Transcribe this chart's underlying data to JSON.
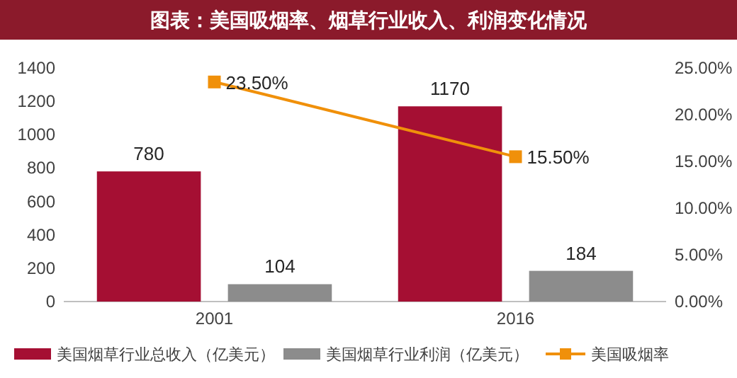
{
  "chart_data": {
    "type": "bar",
    "title": "图表：美国吸烟率、烟草行业收入、利润变化情况",
    "categories": [
      "2001",
      "2016"
    ],
    "series": [
      {
        "name": "美国烟草行业总收入（亿美元）",
        "color": "#a50f33",
        "values": [
          780,
          1170
        ],
        "value_labels": [
          "780",
          "1170"
        ]
      },
      {
        "name": "美国烟草行业利润（亿美元）",
        "color": "#8c8c8c",
        "values": [
          104,
          184
        ],
        "value_labels": [
          "104",
          "184"
        ]
      },
      {
        "name": "美国吸烟率",
        "type": "line",
        "axis": "y2",
        "color": "#f0900a",
        "values": [
          23.5,
          15.5
        ],
        "value_labels": [
          "23.50%",
          "15.50%"
        ]
      }
    ],
    "ylim": [
      0,
      1400
    ],
    "yticks": [
      0,
      200,
      400,
      600,
      800,
      1000,
      1200,
      1400
    ],
    "y2lim": [
      0,
      25
    ],
    "y2ticks": [
      {
        "value": 0,
        "label": "0.00%"
      },
      {
        "value": 5,
        "label": "5.00%"
      },
      {
        "value": 10,
        "label": "10.00%"
      },
      {
        "value": 15,
        "label": "15.00%"
      },
      {
        "value": 20,
        "label": "20.00%"
      },
      {
        "value": 25,
        "label": "25.00%"
      }
    ],
    "marker": "square",
    "legend": "bottom",
    "grid": false
  }
}
